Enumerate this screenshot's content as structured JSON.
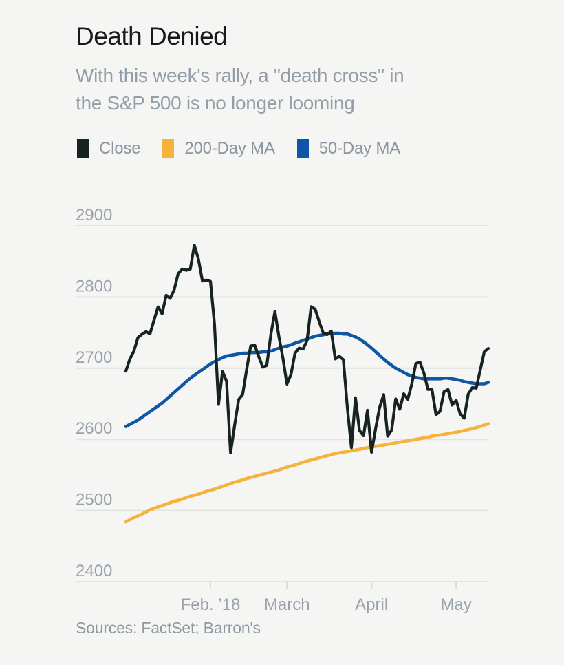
{
  "header": {
    "title": "Death Denied",
    "subtitle_lines": [
      "With this week's rally, a \"death cross\" in",
      "the S&P 500 is no longer looming"
    ]
  },
  "legend": {
    "items": [
      {
        "label": "Close",
        "color": "#172320"
      },
      {
        "label": "200-Day MA",
        "color": "#f6b33c"
      },
      {
        "label": "50-Day MA",
        "color": "#0f57a5"
      }
    ]
  },
  "footer": {
    "sources": "Sources: FactSet; Barron's"
  },
  "chart_data": {
    "type": "line",
    "title": "Death Denied",
    "subtitle": "With this week's rally, a \"death cross\" in the S&P 500 is no longer looming",
    "index": "S&P 500",
    "x_unit": "daily closes by trading day, January through mid-May 2018 (index 0–90)",
    "grid": "horizontal",
    "legend_position": "top",
    "ylim": [
      2400,
      2900
    ],
    "y_ticks": [
      2900,
      2800,
      2700,
      2600,
      2500,
      2400
    ],
    "x_ticks": [
      {
        "label": "Feb. ’18",
        "index": 21
      },
      {
        "label": "March",
        "index": 40
      },
      {
        "label": "April",
        "index": 61
      },
      {
        "label": "May",
        "index": 82
      }
    ],
    "series": [
      {
        "name": "200-Day MA",
        "color": "#f6b33c",
        "values": [
          2484,
          2487,
          2490,
          2492.5,
          2495,
          2498,
          2501,
          2503,
          2505,
          2507,
          2509,
          2511,
          2513,
          2514.5,
          2516,
          2518,
          2520,
          2521.5,
          2523,
          2525,
          2527,
          2528.5,
          2530,
          2532,
          2534,
          2536,
          2538,
          2540,
          2541.5,
          2543,
          2545,
          2546.5,
          2548,
          2549.5,
          2551,
          2552.5,
          2554,
          2555.5,
          2557,
          2559,
          2561,
          2562.5,
          2564,
          2566,
          2568,
          2569.5,
          2571,
          2572.5,
          2574,
          2575.5,
          2577,
          2578.5,
          2580,
          2581,
          2582,
          2583,
          2584,
          2585,
          2586,
          2587,
          2588.5,
          2589.5,
          2590,
          2591,
          2592,
          2593,
          2594,
          2595,
          2596,
          2597,
          2598,
          2599,
          2600,
          2601,
          2602,
          2603,
          2604.5,
          2605.5,
          2606,
          2607,
          2608,
          2609,
          2610,
          2611,
          2612.5,
          2613.5,
          2615,
          2616.5,
          2618,
          2620,
          2622
        ]
      },
      {
        "name": "50-Day MA",
        "color": "#0f57a5",
        "values": [
          2618,
          2621,
          2624,
          2627,
          2631,
          2635,
          2639,
          2643,
          2647,
          2651,
          2656,
          2661,
          2666,
          2671,
          2676,
          2681,
          2686,
          2690,
          2694,
          2698,
          2702,
          2706,
          2709,
          2712,
          2715,
          2717,
          2718,
          2719,
          2720,
          2721,
          2721,
          2722,
          2722,
          2722,
          2723,
          2723,
          2724,
          2726,
          2728,
          2730,
          2731,
          2733,
          2735,
          2737,
          2739,
          2741,
          2743,
          2745,
          2746,
          2747,
          2748,
          2749,
          2749,
          2749,
          2748,
          2748,
          2746,
          2744,
          2741,
          2737,
          2733,
          2728,
          2723,
          2718,
          2713,
          2708,
          2704,
          2700,
          2697,
          2694,
          2691,
          2689,
          2687,
          2686,
          2685,
          2685,
          2685,
          2685,
          2685,
          2686,
          2686,
          2685,
          2684,
          2683,
          2681,
          2680,
          2679,
          2678,
          2678,
          2678,
          2680
        ]
      },
      {
        "name": "Close",
        "color": "#172320",
        "values": [
          2695.81,
          2713.06,
          2723.99,
          2743.15,
          2747.71,
          2751.29,
          2748.23,
          2767.56,
          2786.24,
          2776.42,
          2802.56,
          2798.03,
          2810.3,
          2832.97,
          2839.13,
          2837.54,
          2839.25,
          2872.87,
          2853.53,
          2822.43,
          2823.81,
          2821.98,
          2762.13,
          2648.94,
          2695.14,
          2681.66,
          2581,
          2619.55,
          2656,
          2662.94,
          2698.63,
          2731.2,
          2732.22,
          2716.26,
          2701.33,
          2703.96,
          2747.3,
          2779.6,
          2744.28,
          2713.83,
          2677.67,
          2691.25,
          2720.94,
          2728.12,
          2726.8,
          2738.97,
          2786.57,
          2783.02,
          2765.31,
          2749.48,
          2747.33,
          2752.01,
          2712.92,
          2716.94,
          2711.93,
          2643.69,
          2588.26,
          2658.55,
          2612.62,
          2605,
          2640.87,
          2581.88,
          2614.45,
          2644.69,
          2662.84,
          2604.47,
          2613.16,
          2656.87,
          2642.19,
          2663.99,
          2656.3,
          2677.84,
          2706.39,
          2708.64,
          2693.13,
          2670.14,
          2670.29,
          2634.56,
          2639.4,
          2666.94,
          2669.91,
          2648.05,
          2654.8,
          2635.67,
          2629.73,
          2663.42,
          2672.63,
          2671.92,
          2697.79,
          2723.07,
          2727.72
        ]
      }
    ]
  }
}
